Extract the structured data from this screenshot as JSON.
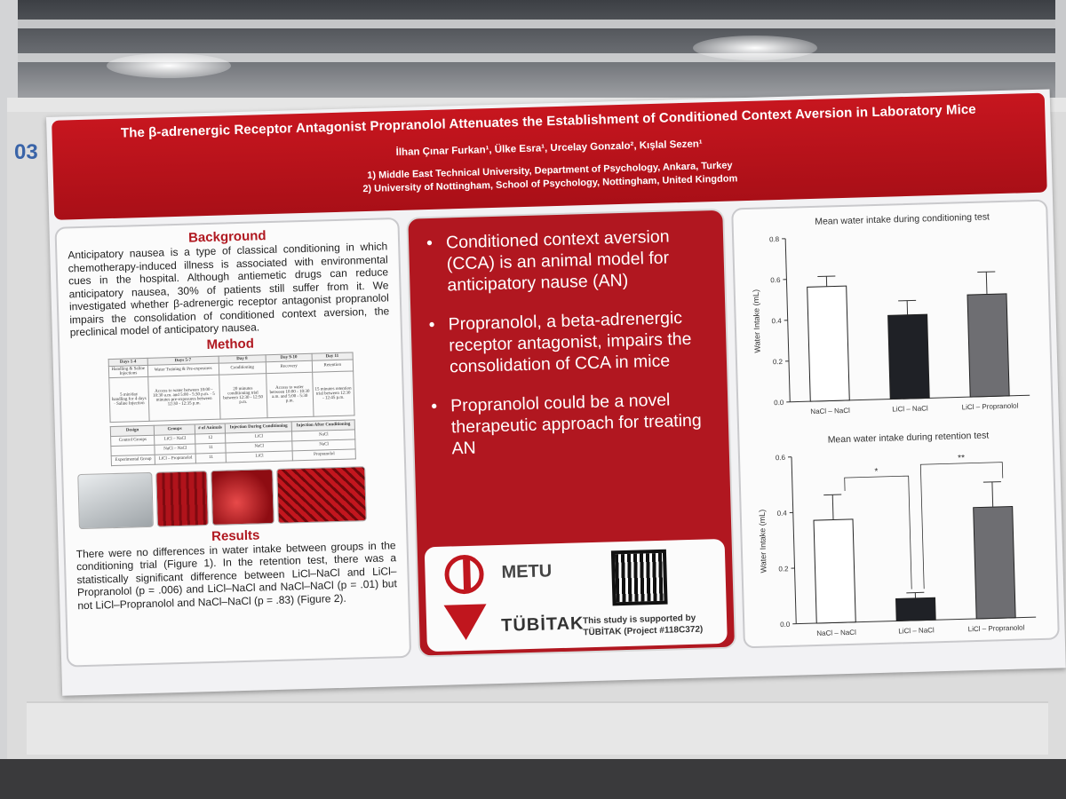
{
  "poster_number": "03",
  "header": {
    "title": "The β-adrenergic Receptor Antagonist Propranolol Attenuates the Establishment of Conditioned Context Aversion in Laboratory Mice",
    "authors": "İlhan Çınar Furkan¹, Ülke Esra¹, Urcelay Gonzalo², Kışlal Sezen¹",
    "affiliation_1": "1) Middle East Technical University, Department of Psychology, Ankara, Turkey",
    "affiliation_2": "2) University of Nottingham, School of Psychology, Nottingham, United Kingdom"
  },
  "background": {
    "heading": "Background",
    "text": "Anticipatory nausea is a type of classical conditioning in which chemotherapy-induced illness is associated with environmental cues in the hospital. Although antiemetic drugs can reduce anticipatory nausea, 30% of patients still suffer from it. We investigated whether β-adrenergic receptor antagonist propranolol impairs the consolidation of conditioned context aversion, the preclinical model of anticipatory nausea."
  },
  "method": {
    "heading": "Method",
    "schedule_header": [
      "Days 1-4",
      "Days 5-7",
      "Day 8",
      "Day 9-10",
      "Day 11"
    ],
    "schedule_row1": [
      "Handling & Saline Injections",
      "Water Training & Pre-exposures",
      "Conditioning",
      "Recovery",
      "Retention"
    ],
    "schedule_row2": [
      "5 min/day handling for 4 days · Saline Injection",
      "Access to water between 10:00 - 10:30 a.m. and 5:00 - 5:30 p.m. · 5 minutes pre-exposures between 12:30 - 12:35 p.m.",
      "20 minutes conditioning trial between 12:30 - 12:50 p.m.",
      "Access to water between 10:00 - 10:30 a.m. and 5:00 - 5:30 p.m.",
      "15 minutes retention trial between 12:30 - 12:45 p.m."
    ],
    "design_header": [
      "Design",
      "Groups",
      "# of Animals",
      "Injection During Conditioning",
      "Injection After Conditioning"
    ],
    "design_rows": [
      [
        "Control Groups",
        "LiCl – NaCl",
        "12",
        "LiCl",
        "NaCl"
      ],
      [
        "",
        "NaCl – NaCl",
        "11",
        "NaCl",
        "NaCl"
      ],
      [
        "Experimental Group",
        "LiCl – Propranolol",
        "11",
        "LiCl",
        "Propranolol"
      ]
    ]
  },
  "results": {
    "heading": "Results",
    "text": "There were no differences in water intake between groups in the conditioning trial (Figure 1). In the retention test, there was a statistically significant difference between LiCl–NaCl and LiCl–Propranolol (p = .006) and LiCl–NaCl and NaCl–NaCl (p = .01) but not LiCl–Propranolol and NaCl–NaCl (p = .83) (Figure 2)."
  },
  "summary_bullets": [
    "Conditioned context aversion (CCA) is an animal model for anticipatory nause (AN)",
    "Propranolol, a beta-adrenergic receptor antagonist, impairs the consolidation of CCA in mice",
    "Propranolol could be a novel therapeutic approach for treating AN"
  ],
  "logos": {
    "metu": "METU",
    "tubitak": "TÜBİTAK",
    "support_text": "This study is supported by TÜBİTAK (Project #118C372)"
  },
  "colors": {
    "poster_red": "#b11720",
    "bar_nacl": "#ffffff",
    "bar_licl_nacl": "#1f2126",
    "bar_licl_prop": "#6e6e72"
  },
  "chart_data": [
    {
      "type": "bar",
      "title": "Mean water intake during conditioning test",
      "ylabel": "Water Intake (mL)",
      "categories": [
        "NaCl – NaCl",
        "LiCl – NaCl",
        "LiCl – Propranolol"
      ],
      "values": [
        0.56,
        0.41,
        0.5
      ],
      "errors": [
        0.05,
        0.07,
        0.11
      ],
      "ylim": [
        0,
        0.8
      ],
      "yticks": [
        "0.0",
        "0.2",
        "0.4",
        "0.6",
        "0.8"
      ],
      "annotations": []
    },
    {
      "type": "bar",
      "title": "Mean water intake during retention test",
      "ylabel": "Water Intake (mL)",
      "categories": [
        "NaCl – NaCl",
        "LiCl – NaCl",
        "LiCl – Propranolol"
      ],
      "values": [
        0.37,
        0.08,
        0.4
      ],
      "errors": [
        0.09,
        0.02,
        0.09
      ],
      "ylim": [
        0,
        0.6
      ],
      "yticks": [
        "0.0",
        "0.2",
        "0.4",
        "0.6"
      ],
      "annotations": [
        "*",
        "**"
      ]
    }
  ]
}
